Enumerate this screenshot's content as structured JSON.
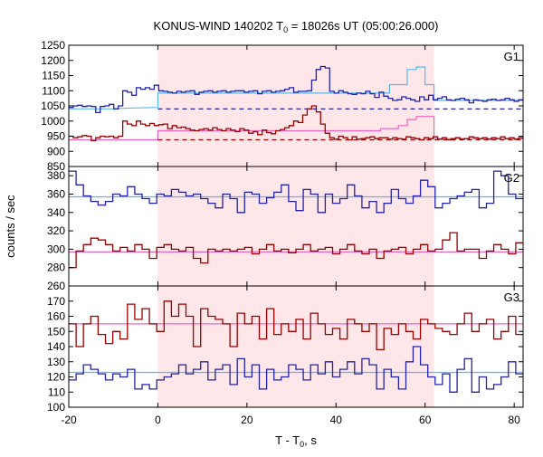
{
  "chart_data": {
    "type": "line",
    "title": {
      "main": "KONUS-WIND 140202 T",
      "sub": "0",
      "rest": " = 18026s UT (05:00:26.000)"
    },
    "xlabel": {
      "main": "T - T",
      "sub": "0",
      "rest": ", s"
    },
    "ylabel": "counts / sec",
    "xlim": [
      -20,
      82
    ],
    "x_ticks": [
      -20,
      0,
      20,
      40,
      60,
      80
    ],
    "x_tick_labels": [
      "-20",
      "0",
      "20",
      "40",
      "60",
      "80"
    ],
    "highlight_interval": [
      0,
      62
    ],
    "bin_width": 2,
    "x_start": -20,
    "colors": {
      "highlight": "#ffe6e8",
      "blue_series": "#2222aa",
      "red_series": "#990000",
      "blue_fit": "#55bbee",
      "red_fit": "#ee66bb",
      "blue_bg": "#2222aa",
      "red_bg": "#990000"
    },
    "panels": [
      {
        "label": "G1",
        "ylim": [
          850,
          1250
        ],
        "y_ticks": [
          850,
          900,
          950,
          1000,
          1050,
          1100,
          1150,
          1200,
          1250
        ],
        "y_tick_labels": [
          "850",
          "900",
          "950",
          "1000",
          "1050",
          "1100",
          "1150",
          "1200",
          "1250"
        ],
        "series": [
          {
            "color_key": "blue_series",
            "values": [
              1045,
              1050,
              1052,
              1048,
              1050,
              1048,
              1028,
              1048,
              1050,
              1055,
              1040,
              1050,
              1100,
              1095,
              1085,
              1110,
              1105,
              1110,
              1105,
              1118,
              1100,
              1098,
              1095,
              1092,
              1098,
              1095,
              1098,
              1100,
              1088,
              1095,
              1098,
              1100,
              1095,
              1098,
              1100,
              1095,
              1098,
              1100,
              1100,
              1095,
              1098,
              1100,
              1090,
              1098,
              1100,
              1095,
              1098,
              1100,
              1105,
              1110,
              1095,
              1098,
              1098,
              1100,
              1135,
              1170,
              1180,
              1175,
              1098,
              1092,
              1100,
              1095,
              1090,
              1088,
              1092,
              1090,
              1098,
              1090,
              1078,
              1095,
              1082,
              1075,
              1068,
              1070,
              1080,
              1075,
              1070,
              1065,
              1080,
              1070,
              1085,
              1070,
              1075,
              1080,
              1070,
              1068,
              1072,
              1075,
              1070,
              1060,
              1070,
              1068,
              1065,
              1070,
              1072,
              1068,
              1070,
              1075,
              1070,
              1065,
              1070
            ]
          },
          {
            "color_key": "red_series",
            "values": [
              950,
              945,
              948,
              952,
              950,
              935,
              945,
              950,
              948,
              950,
              945,
              950,
              1000,
              990,
              985,
              1000,
              990,
              985,
              992,
              985,
              988,
              990,
              975,
              985,
              978,
              980,
              975,
              970,
              968,
              972,
              975,
              970,
              978,
              972,
              968,
              975,
              970,
              965,
              975,
              970,
              960,
              965,
              955,
              970,
              962,
              958,
              968,
              972,
              978,
              985,
              1000,
              995,
              1020,
              1040,
              1050,
              1030,
              990,
              960,
              945,
              940,
              950,
              945,
              938,
              948,
              940,
              942,
              945,
              948,
              942,
              945,
              945,
              940,
              945,
              942,
              940,
              948,
              945,
              942,
              938,
              945,
              942,
              948,
              940,
              945,
              938,
              942,
              945,
              940,
              942,
              948,
              945,
              942,
              945,
              940,
              945,
              942,
              948,
              942,
              945,
              940,
              945
            ]
          }
        ],
        "fits": [
          {
            "color_key": "blue_fit",
            "x": [
              -20,
              -10,
              -8,
              0,
              0,
              52,
              52,
              56,
              56,
              58,
              58,
              60,
              60,
              62,
              62,
              82
            ],
            "y": [
              1040,
              1040,
              1042,
              1045,
              1092,
              1092,
              1120,
              1120,
              1170,
              1170,
              1178,
              1178,
              1120,
              1120,
              1068,
              1068
            ]
          },
          {
            "color_key": "red_fit",
            "x": [
              -20,
              0,
              0,
              50,
              50,
              54,
              54,
              56,
              56,
              58,
              58,
              62,
              62,
              82
            ],
            "y": [
              938,
              938,
              968,
              968,
              975,
              975,
              985,
              985,
              1005,
              1005,
              1015,
              1015,
              942,
              942
            ]
          }
        ],
        "backgrounds": [
          {
            "color_key": "blue_bg",
            "x": [
              0,
              82
            ],
            "y": 1040
          },
          {
            "color_key": "red_bg",
            "x": [
              0,
              82
            ],
            "y": 938
          }
        ]
      },
      {
        "label": "G2",
        "ylim": [
          260,
          390
        ],
        "y_ticks": [
          260,
          280,
          300,
          320,
          340,
          360,
          380
        ],
        "y_tick_labels": [
          "260",
          "280",
          "300",
          "320",
          "340",
          "360",
          "380"
        ],
        "series": [
          {
            "color_key": "blue_series",
            "values": [
              385,
              370,
              358,
              352,
              348,
              352,
              360,
              358,
              368,
              360,
              355,
              350,
              360,
              358,
              365,
              362,
              358,
              360,
              355,
              350,
              345,
              360,
              355,
              340,
              362,
              360,
              350,
              356,
              362,
              370,
              352,
              342,
              365,
              360,
              340,
              360,
              350,
              355,
              370,
              358,
              345,
              352,
              340,
              350,
              365,
              355,
              350,
              358,
              375,
              368,
              345,
              350,
              355,
              358,
              362,
              365,
              345,
              350,
              385,
              380,
              360,
              355
            ]
          },
          {
            "color_key": "red_series",
            "values": [
              280,
              298,
              305,
              312,
              310,
              305,
              298,
              302,
              298,
              305,
              300,
              290,
              302,
              305,
              300,
              298,
              302,
              290,
              285,
              300,
              298,
              300,
              298,
              300,
              302,
              295,
              300,
              305,
              298,
              300,
              296,
              300,
              305,
              298,
              300,
              302,
              295,
              300,
              305,
              298,
              295,
              300,
              290,
              298,
              300,
              302,
              295,
              300,
              305,
              298,
              300,
              310,
              318,
              298,
              300,
              300,
              290,
              298,
              305,
              300,
              295,
              307
            ]
          }
        ],
        "fits": [
          {
            "color_key": "blue_fit",
            "x": [
              -20,
              82
            ],
            "y": [
              357,
              357
            ]
          },
          {
            "color_key": "red_fit",
            "x": [
              -20,
              82
            ],
            "y": [
              297,
              297
            ]
          }
        ],
        "backgrounds": []
      },
      {
        "label": "G3",
        "ylim": [
          100,
          180
        ],
        "y_ticks": [
          100,
          110,
          120,
          130,
          140,
          150,
          160,
          170
        ],
        "y_tick_labels": [
          "100",
          "110",
          "120",
          "130",
          "140",
          "150",
          "160",
          "170"
        ],
        "series": [
          {
            "color_key": "blue_series",
            "values": [
              118,
              122,
              128,
              125,
              122,
              118,
              122,
              120,
              125,
              112,
              115,
              112,
              118,
              120,
              122,
              128,
              122,
              125,
              130,
              118,
              125,
              128,
              115,
              132,
              120,
              128,
              112,
              125,
              118,
              120,
              128,
              125,
              118,
              128,
              122,
              130,
              120,
              125,
              130,
              122,
              132,
              128,
              112,
              125,
              120,
              112,
              130,
              140,
              128,
              120,
              115,
              122,
              110,
              125,
              132,
              110,
              120,
              112,
              115,
              120,
              130,
              122
            ]
          },
          {
            "color_key": "red_series",
            "values": [
              155,
              140,
              155,
              160,
              148,
              142,
              150,
              145,
              168,
              158,
              165,
              155,
              150,
              170,
              160,
              168,
              160,
              140,
              165,
              160,
              158,
              155,
              140,
              162,
              155,
              160,
              145,
              165,
              148,
              155,
              150,
              158,
              145,
              162,
              155,
              148,
              152,
              145,
              158,
              155,
              150,
              155,
              138,
              152,
              148,
              155,
              150,
              145,
              158,
              155,
              152,
              150,
              148,
              155,
              162,
              150,
              155,
              158,
              145,
              150,
              160,
              148
            ]
          }
        ],
        "fits": [
          {
            "color_key": "blue_fit",
            "x": [
              -20,
              82
            ],
            "y": [
              123,
              123
            ]
          },
          {
            "color_key": "red_fit",
            "x": [
              -20,
              82
            ],
            "y": [
              155,
              155
            ]
          }
        ],
        "backgrounds": []
      }
    ]
  }
}
